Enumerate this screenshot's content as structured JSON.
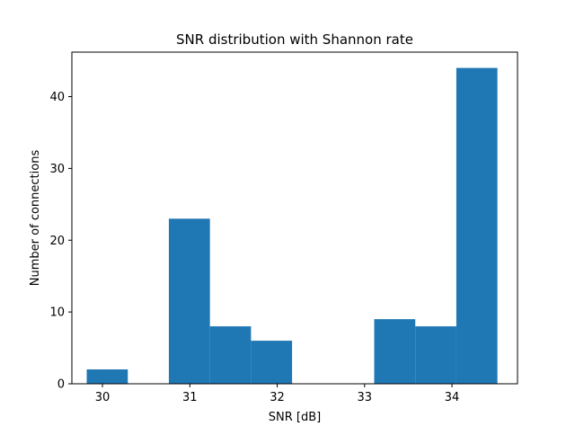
{
  "chart_data": {
    "type": "bar",
    "subtype": "histogram",
    "title": "SNR distribution with Shannon rate",
    "xlabel": "SNR [dB]",
    "ylabel": "Number of connections",
    "xlim": [
      29.65,
      34.75
    ],
    "ylim": [
      0,
      46.2
    ],
    "grid": false,
    "legend": "none",
    "xticks": [
      30,
      31,
      32,
      33,
      34
    ],
    "yticks": [
      0,
      10,
      20,
      30,
      40
    ],
    "bins": [
      {
        "x0": 29.82,
        "x1": 30.29,
        "count": 2
      },
      {
        "x0": 30.29,
        "x1": 30.76,
        "count": 0
      },
      {
        "x0": 30.76,
        "x1": 31.23,
        "count": 23
      },
      {
        "x0": 31.23,
        "x1": 31.7,
        "count": 8
      },
      {
        "x0": 31.7,
        "x1": 32.17,
        "count": 6
      },
      {
        "x0": 32.17,
        "x1": 32.64,
        "count": 0
      },
      {
        "x0": 32.64,
        "x1": 33.11,
        "count": 0
      },
      {
        "x0": 33.11,
        "x1": 33.58,
        "count": 9
      },
      {
        "x0": 33.58,
        "x1": 34.05,
        "count": 8
      },
      {
        "x0": 34.05,
        "x1": 34.52,
        "count": 44
      }
    ],
    "bar_color": "#1f77b4"
  }
}
